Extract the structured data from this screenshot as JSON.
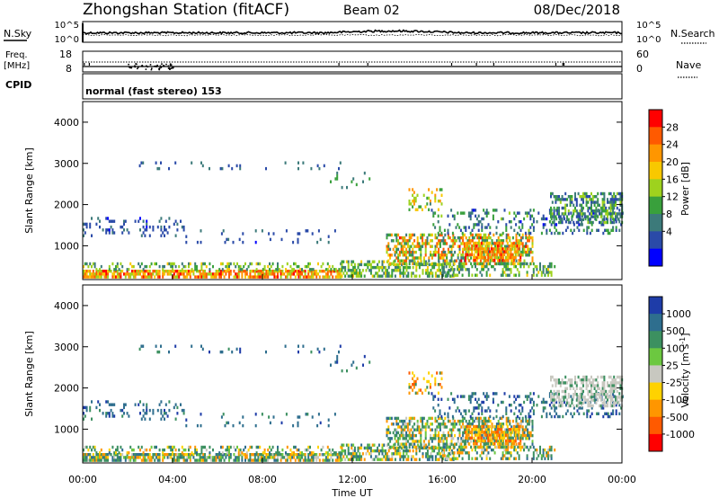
{
  "header": {
    "station": "Zhongshan Station (fitACF)",
    "beam": "Beam 02",
    "date": "08/Dec/2018"
  },
  "top_panels": {
    "nsky": {
      "label": "N.Sky",
      "tick_top": "10^5",
      "tick_bottom": "10^0",
      "right_label": "N.Search",
      "right_tick_top": "10^5",
      "right_tick_bottom": "10^0"
    },
    "freq": {
      "label_line1": "Freq.",
      "label_line2": "[MHz]",
      "tick_top": "18",
      "tick_bottom": "8",
      "right_label": "Nave",
      "right_tick_top": "60",
      "right_tick_bottom": "0"
    },
    "cpid": {
      "label": "CPID",
      "text": "normal (fast stereo) 153"
    }
  },
  "chart_data": [
    {
      "type": "heatmap",
      "ylabel": "Slant Range [km]",
      "y_ticks": [
        "4000",
        "3000",
        "2000",
        "1000"
      ],
      "ylim": [
        180,
        4500
      ],
      "colorbar": {
        "label": "Power [dB]",
        "ticks": [
          "28",
          "24",
          "20",
          "16",
          "12",
          "8",
          "4"
        ],
        "colors": [
          "#ff0000",
          "#ff5a00",
          "#ff9600",
          "#f8c800",
          "#9ed21e",
          "#39a03c",
          "#3c7a7a",
          "#2a4aa8",
          "#0000ff"
        ]
      }
    },
    {
      "type": "heatmap",
      "ylabel": "Slant Range [km]",
      "y_ticks": [
        "4000",
        "3000",
        "2000",
        "1000"
      ],
      "ylim": [
        180,
        4500
      ],
      "x_ticks": [
        "00:00",
        "04:00",
        "08:00",
        "12:00",
        "16:00",
        "20:00",
        "00:00"
      ],
      "xlabel": "Time UT",
      "colorbar": {
        "label": "Velocity [m s^-1]",
        "ticks": [
          "1000",
          "500",
          "100",
          "25",
          "-25",
          "-100",
          "-500",
          "-1000"
        ],
        "colors": [
          "#1e3ca8",
          "#2e6e8e",
          "#3c9060",
          "#6cc840",
          "#c8c8c0",
          "#ffd200",
          "#ff9600",
          "#ff5a00",
          "#ff0000"
        ]
      }
    }
  ]
}
